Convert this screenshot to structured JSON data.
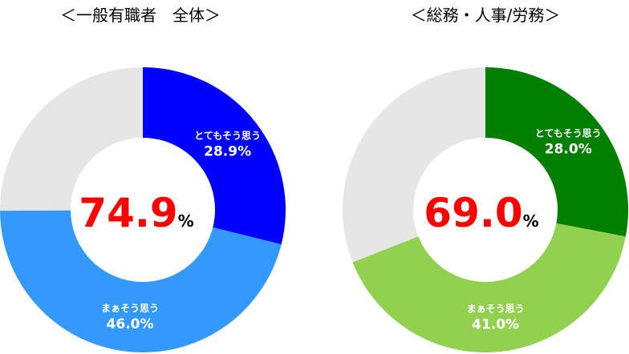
{
  "chart_data": [
    {
      "type": "pie",
      "style": "donut",
      "title": "＜一般有職者　全体＞",
      "center_value": "74.9",
      "center_unit": "%",
      "slices": [
        {
          "label": "とてもそう思う",
          "value": 28.9,
          "value_label": "28.9%",
          "color": "#0000ff"
        },
        {
          "label": "まぁそう思う",
          "value": 46.0,
          "value_label": "46.0%",
          "color": "#3399ff"
        },
        {
          "label": "",
          "value": 25.1,
          "value_label": "",
          "color": "#e6e6e6"
        }
      ]
    },
    {
      "type": "pie",
      "style": "donut",
      "title": "＜総務・人事/労務＞",
      "center_value": "69.0",
      "center_unit": "%",
      "slices": [
        {
          "label": "とてもそう思う",
          "value": 28.0,
          "value_label": "28.0%",
          "color": "#008000"
        },
        {
          "label": "まぁそう思う",
          "value": 41.0,
          "value_label": "41.0%",
          "color": "#92d050"
        },
        {
          "label": "",
          "value": 31.0,
          "value_label": "",
          "color": "#e6e6e6"
        }
      ]
    }
  ]
}
